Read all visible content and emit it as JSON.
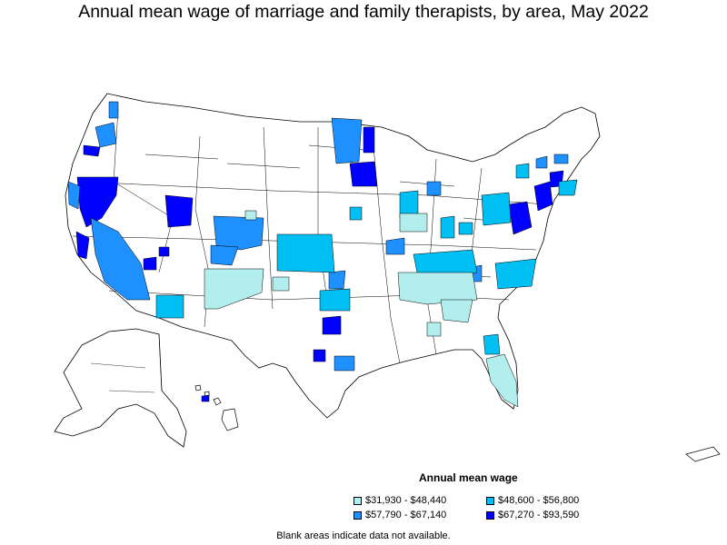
{
  "title": "Annual mean wage of marriage and family therapists, by area, May 2022",
  "legend": {
    "title": "Annual mean wage",
    "items": [
      {
        "label": "$31,930 - $48,440",
        "color": "#b3eeee"
      },
      {
        "label": "$48,600 - $56,800",
        "color": "#00bff3"
      },
      {
        "label": "$57,790 - $67,140",
        "color": "#1e90ff"
      },
      {
        "label": "$67,270 - $93,590",
        "color": "#0000ff"
      }
    ]
  },
  "note": "Blank areas indicate data not available.",
  "colors": {
    "border": "#000000",
    "no_data": "#ffffff"
  }
}
